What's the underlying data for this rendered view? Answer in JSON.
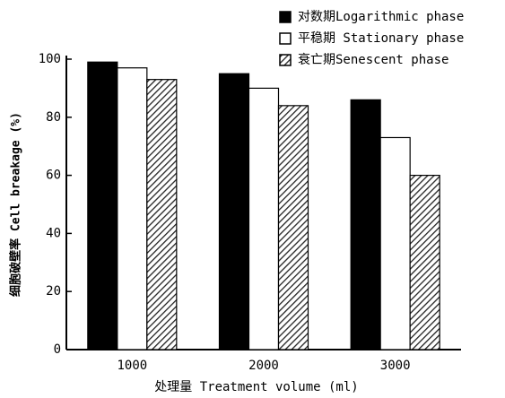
{
  "chart_data": {
    "type": "bar",
    "xlabel": "处理量 Treatment volume (ml)",
    "ylabel": "细胞破壁率 Cell breakage (%)",
    "categories": [
      "1000",
      "2000",
      "3000"
    ],
    "series": [
      {
        "name": "对数期Logarithmic phase",
        "color": "#000000",
        "values": [
          99,
          95,
          86
        ]
      },
      {
        "name": "平稳期 Stationary phase",
        "color": "#ffffff",
        "values": [
          97,
          90,
          73
        ]
      },
      {
        "name": "衰亡期Senescent phase",
        "color": "#333333",
        "pattern": "hatch",
        "values": [
          93,
          84,
          60
        ]
      }
    ],
    "ylim": [
      0,
      100
    ],
    "yticks": [
      0,
      20,
      40,
      60,
      80,
      100
    ],
    "grid": false,
    "legend": "top-right"
  }
}
